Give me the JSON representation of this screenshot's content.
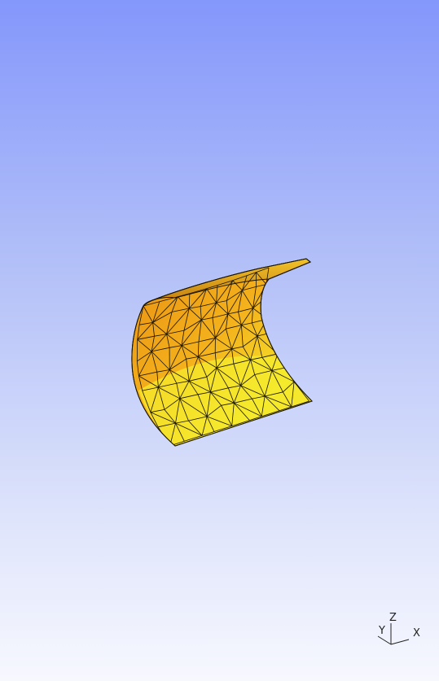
{
  "viewer": {
    "background_top": "#8497fb",
    "background_bottom": "#f7f8fe"
  },
  "surface": {
    "shape": "curved cylindrical shell (triangulated mesh)",
    "fill_color": "#f4b21c",
    "highlight_color": "#f6ec2e",
    "shadow_color": "#c2770c",
    "edge_color": "#1a1400"
  },
  "axes": {
    "x_label": "X",
    "y_label": "Y",
    "z_label": "Z"
  }
}
